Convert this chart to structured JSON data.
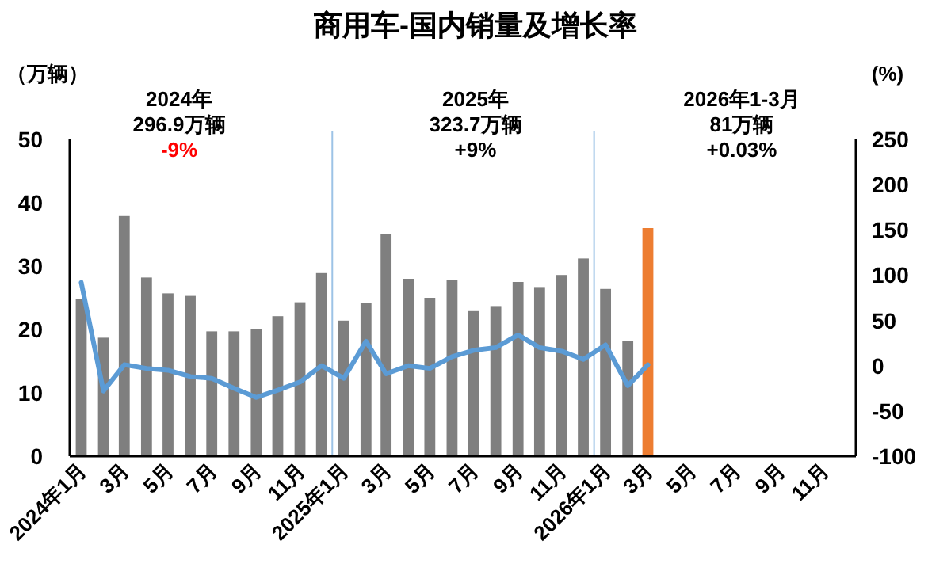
{
  "chart_data": {
    "type": "bar",
    "title": "商用车-国内销量及增长率",
    "ylabel": "（万辆）",
    "y2label": "(%)",
    "annotations": [
      "2024年",
      "296.9万辆",
      "-9%",
      "2025年",
      "323.7万辆",
      "+9%",
      "2026年1-3月",
      "81万辆",
      "+0.03%"
    ],
    "x": [
      "2024-01",
      "2024-02",
      "2024-03",
      "2024-04",
      "2024-05",
      "2024-06",
      "2024-07",
      "2024-08",
      "2024-09",
      "2024-10",
      "2024-11",
      "2024-12",
      "2025-01",
      "2025-02",
      "2025-03",
      "2025-04",
      "2025-05",
      "2025-06",
      "2025-07",
      "2025-08",
      "2025-09",
      "2025-10",
      "2025-11",
      "2025-12",
      "2026-01",
      "2026-02",
      "2026-03"
    ],
    "xlim": [
      "2023-12-16",
      "2026-12-16"
    ],
    "xticks": [
      {
        "value": "2024-01",
        "label": "2024年1月"
      },
      {
        "value": "2024-03",
        "label": "3月"
      },
      {
        "value": "2024-05",
        "label": "5月"
      },
      {
        "value": "2024-07",
        "label": "7月"
      },
      {
        "value": "2024-09",
        "label": "9月"
      },
      {
        "value": "2024-11",
        "label": "11月"
      },
      {
        "value": "2025-01",
        "label": "2025年1月"
      },
      {
        "value": "2025-03",
        "label": "3月"
      },
      {
        "value": "2025-05",
        "label": "5月"
      },
      {
        "value": "2025-07",
        "label": "7月"
      },
      {
        "value": "2025-09",
        "label": "9月"
      },
      {
        "value": "2025-11",
        "label": "11月"
      },
      {
        "value": "2026-01",
        "label": "2026年1月"
      },
      {
        "value": "2026-03",
        "label": "3月"
      },
      {
        "value": "2026-05",
        "label": "5月"
      },
      {
        "value": "2026-07",
        "label": "7月"
      },
      {
        "value": "2026-09",
        "label": "9月"
      },
      {
        "value": "2026-11",
        "label": "11月"
      }
    ],
    "ylim": [
      0,
      50
    ],
    "yticks": [
      0,
      10,
      20,
      30,
      40,
      50
    ],
    "y2lim": [
      -100,
      250
    ],
    "y2ticks": [
      -100,
      -50,
      0,
      50,
      100,
      150,
      200,
      250
    ],
    "series": [
      {
        "colors": [
          "#7f7f7f",
          "#7f7f7f",
          "#7f7f7f",
          "#7f7f7f",
          "#7f7f7f",
          "#7f7f7f",
          "#7f7f7f",
          "#7f7f7f",
          "#7f7f7f",
          "#7f7f7f",
          "#7f7f7f",
          "#7f7f7f",
          "#7f7f7f",
          "#7f7f7f",
          "#7f7f7f",
          "#7f7f7f",
          "#7f7f7f",
          "#7f7f7f",
          "#7f7f7f",
          "#7f7f7f",
          "#7f7f7f",
          "#7f7f7f",
          "#7f7f7f",
          "#7f7f7f",
          "#7f7f7f",
          "#7f7f7f",
          "#ed7d31"
        ],
        "values": [
          24.8,
          18.7,
          37.9,
          28.2,
          25.7,
          25.3,
          19.7,
          19.7,
          20.1,
          22.1,
          24.3,
          28.9,
          21.4,
          24.2,
          35.0,
          28.0,
          25.0,
          27.8,
          22.9,
          23.7,
          27.5,
          26.7,
          28.6,
          31.2,
          26.4,
          18.2,
          36.0
        ]
      },
      {
        "type": "line",
        "axis": "y2",
        "color": "#5b9bd5",
        "values": [
          92,
          -28,
          1,
          -3,
          -5,
          -12,
          -14,
          -25,
          -35,
          -27,
          -18,
          0,
          -14,
          27,
          -9,
          0,
          -3,
          10,
          17,
          20,
          34,
          20,
          16,
          7,
          23,
          -22,
          1
        ]
      }
    ],
    "ref_lines": [
      {
        "axis": "x",
        "value": "2024-12-16",
        "color": "#9dc3e6"
      },
      {
        "axis": "x",
        "value": "2025-12-16",
        "color": "#9dc3e6"
      }
    ],
    "grid": false,
    "marker": "none"
  }
}
